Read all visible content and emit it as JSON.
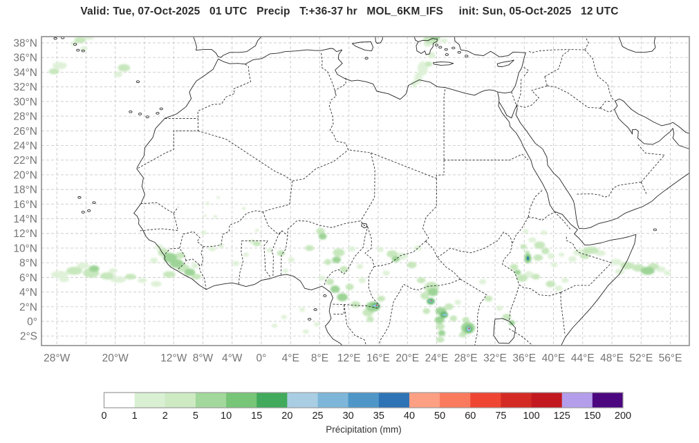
{
  "title": "Valid: Tue, 07-Oct-2025   01 UTC   Precip   T:+36-37 hr   MOL_6KM_IFS     init: Sun, 05-Oct-2025   12 UTC",
  "chart_data": {
    "type": "heatmap",
    "title": "Valid: Tue, 07-Oct-2025 01 UTC Precip T:+36-37 hr MOL_6KM_IFS init: Sun, 05-Oct-2025 12 UTC",
    "model": "MOL_6KM_IFS",
    "valid_time": "Tue, 07-Oct-2025 01 UTC",
    "init_time": "Sun, 05-Oct-2025 12 UTC",
    "lead_time": "T:+36-37 hr",
    "variable": "Precip",
    "projection": "plate-carree",
    "extent": {
      "lon_min": -30.1,
      "lon_max": 58.6,
      "lat_min": -3.3,
      "lat_max": 38.85
    },
    "grid": {
      "lon_start": -28,
      "lon_end": 56,
      "lon_step": 4,
      "lat_start": -2,
      "lat_end": 38,
      "lat_step": 2
    },
    "xticks": [
      {
        "v": -28,
        "label": "28°W"
      },
      {
        "v": -20,
        "label": "20°W"
      },
      {
        "v": -12,
        "label": "12°W"
      },
      {
        "v": -8,
        "label": "8°W"
      },
      {
        "v": -4,
        "label": "4°W"
      },
      {
        "v": 0,
        "label": "0°"
      },
      {
        "v": 4,
        "label": "4°E"
      },
      {
        "v": 8,
        "label": "8°E"
      },
      {
        "v": 12,
        "label": "12°E"
      },
      {
        "v": 16,
        "label": "16°E"
      },
      {
        "v": 20,
        "label": "20°E"
      },
      {
        "v": 24,
        "label": "24°E"
      },
      {
        "v": 28,
        "label": "28°E"
      },
      {
        "v": 32,
        "label": "32°E"
      },
      {
        "v": 36,
        "label": "36°E"
      },
      {
        "v": 40,
        "label": "40°E"
      },
      {
        "v": 44,
        "label": "44°E"
      },
      {
        "v": 48,
        "label": "48°E"
      },
      {
        "v": 52,
        "label": "52°E"
      },
      {
        "v": 56,
        "label": "56°E"
      }
    ],
    "yticks": [
      {
        "v": 38,
        "label": "38°N"
      },
      {
        "v": 36,
        "label": "36°N"
      },
      {
        "v": 34,
        "label": "34°N"
      },
      {
        "v": 32,
        "label": "32°N"
      },
      {
        "v": 30,
        "label": "30°N"
      },
      {
        "v": 28,
        "label": "28°N"
      },
      {
        "v": 26,
        "label": "26°N"
      },
      {
        "v": 24,
        "label": "24°N"
      },
      {
        "v": 22,
        "label": "22°N"
      },
      {
        "v": 20,
        "label": "20°N"
      },
      {
        "v": 18,
        "label": "18°N"
      },
      {
        "v": 16,
        "label": "16°N"
      },
      {
        "v": 14,
        "label": "14°N"
      },
      {
        "v": 12,
        "label": "12°N"
      },
      {
        "v": 10,
        "label": "10°N"
      },
      {
        "v": 8,
        "label": "8°N"
      },
      {
        "v": 6,
        "label": "6°N"
      },
      {
        "v": 4,
        "label": "4°N"
      },
      {
        "v": 2,
        "label": "2°N"
      },
      {
        "v": 0,
        "label": "0°"
      },
      {
        "v": -2,
        "label": "2°S"
      }
    ],
    "colorbar": {
      "caption": "Précipitation (mm)",
      "levels": [
        0,
        1,
        2,
        5,
        10,
        15,
        20,
        25,
        30,
        35,
        40,
        50,
        60,
        75,
        100,
        125,
        150,
        200
      ],
      "colors": [
        "#ffffff",
        "#d9f0d3",
        "#cdeac3",
        "#a2d89b",
        "#77c577",
        "#42aa5c",
        "#a9cee4",
        "#7db6d9",
        "#4e96c8",
        "#2d73b5",
        "#fc9f83",
        "#fa7a5e",
        "#ef4533",
        "#d32b24",
        "#c2181f",
        "#b49dea",
        "#4b0680"
      ]
    },
    "cell_colors": {
      "l1": "#ddf1d6",
      "l2": "#c3e5b8",
      "l3": "#96d18f",
      "l4": "#57b467",
      "l5": "#3fa85a",
      "lb": "#8fc2e2",
      "bl": "#2d73b5",
      "pk": "#fc9f83",
      "rd": "#e23227"
    },
    "cells": [
      [
        -24.8,
        38.4,
        0.8,
        0.45,
        "l2"
      ],
      [
        -25.6,
        37.9,
        0.5,
        0.35,
        "l1"
      ],
      [
        -24.3,
        37.2,
        0.5,
        0.35,
        "l1"
      ],
      [
        -18.8,
        34.6,
        0.85,
        0.5,
        "l2"
      ],
      [
        -19.6,
        33.7,
        0.6,
        0.4,
        "l1"
      ],
      [
        -27.6,
        34.9,
        1.0,
        0.5,
        "l1"
      ],
      [
        -28.4,
        34.1,
        0.7,
        0.4,
        "l2"
      ],
      [
        -23.5,
        38.7,
        0.6,
        0.3,
        "l1"
      ],
      [
        23.3,
        38.5,
        1.1,
        0.7,
        "l2"
      ],
      [
        23.8,
        38.8,
        0.7,
        0.4,
        "l3"
      ],
      [
        22.7,
        37.8,
        0.5,
        0.35,
        "l1"
      ],
      [
        23.3,
        36.3,
        0.55,
        0.45,
        "l1"
      ],
      [
        22.1,
        34.5,
        0.7,
        1.0,
        "l1"
      ],
      [
        21.5,
        33.2,
        0.55,
        0.8,
        "l1"
      ],
      [
        22.9,
        35.1,
        0.5,
        0.35,
        "l2"
      ],
      [
        25.0,
        38.3,
        0.5,
        0.3,
        "l1"
      ],
      [
        20.9,
        32.4,
        0.4,
        0.5,
        "l1"
      ],
      [
        -7.4,
        16.1,
        0.3,
        0.2,
        "l1"
      ],
      [
        -6.3,
        14.3,
        0.3,
        0.2,
        "l1"
      ],
      [
        -7.7,
        14.4,
        0.25,
        0.18,
        "l1"
      ],
      [
        -2.4,
        15.4,
        0.3,
        0.2,
        "l1"
      ],
      [
        -0.6,
        12.4,
        0.3,
        0.22,
        "l1"
      ],
      [
        -5.9,
        16.9,
        0.25,
        0.18,
        "l1"
      ],
      [
        -27.6,
        6.4,
        1.2,
        0.5,
        "l1"
      ],
      [
        -25.6,
        6.9,
        1.1,
        0.55,
        "l2"
      ],
      [
        -24.4,
        7.6,
        0.85,
        0.45,
        "l1"
      ],
      [
        -23.3,
        6.6,
        1.1,
        0.65,
        "l2"
      ],
      [
        -22.9,
        7.2,
        0.7,
        0.45,
        "l3"
      ],
      [
        -21.1,
        6.2,
        0.95,
        0.5,
        "l2"
      ],
      [
        -19.6,
        5.7,
        1.1,
        0.45,
        "l1"
      ],
      [
        -17.9,
        6.1,
        0.75,
        0.4,
        "l2"
      ],
      [
        -16.3,
        5.6,
        0.65,
        0.35,
        "l1"
      ],
      [
        -14.4,
        5.1,
        0.75,
        0.4,
        "l1"
      ],
      [
        -12.6,
        6.4,
        0.85,
        0.45,
        "l2"
      ],
      [
        -27.0,
        5.7,
        0.7,
        0.35,
        "l1"
      ],
      [
        -20.3,
        6.9,
        0.6,
        0.35,
        "l1"
      ],
      [
        -13.4,
        9.4,
        0.75,
        0.55,
        "l2"
      ],
      [
        -12.5,
        8.7,
        0.95,
        0.65,
        "l3"
      ],
      [
        -11.6,
        7.9,
        0.95,
        0.6,
        "l3"
      ],
      [
        -10.7,
        7.3,
        0.85,
        0.55,
        "l2"
      ],
      [
        -9.8,
        6.7,
        0.75,
        0.5,
        "l3"
      ],
      [
        -14.0,
        10.1,
        0.55,
        0.4,
        "l1"
      ],
      [
        -11.1,
        9.0,
        0.65,
        0.45,
        "l2"
      ],
      [
        -8.9,
        6.1,
        0.65,
        0.4,
        "l2"
      ],
      [
        -14.7,
        8.3,
        0.55,
        0.4,
        "l1"
      ],
      [
        -9.1,
        7.6,
        0.5,
        0.4,
        "l1"
      ],
      [
        -6.7,
        9.9,
        0.5,
        0.35,
        "l1"
      ],
      [
        -5.5,
        10.3,
        0.4,
        0.3,
        "l1"
      ],
      [
        -3.5,
        7.9,
        0.5,
        0.35,
        "l1"
      ],
      [
        -2.1,
        9.1,
        0.4,
        0.3,
        "l1"
      ],
      [
        -0.6,
        10.6,
        0.55,
        0.35,
        "l2"
      ],
      [
        -1.3,
        10.9,
        0.45,
        0.3,
        "l1"
      ],
      [
        1.1,
        9.7,
        0.4,
        0.3,
        "l1"
      ],
      [
        -7.9,
        12.1,
        0.4,
        0.3,
        "l1"
      ],
      [
        2.7,
        9.3,
        0.55,
        0.4,
        "l2"
      ],
      [
        4.1,
        8.4,
        0.45,
        0.35,
        "l1"
      ],
      [
        6.6,
        10.0,
        0.6,
        0.4,
        "l2"
      ],
      [
        3.3,
        6.9,
        0.4,
        0.3,
        "l1"
      ],
      [
        8.1,
        12.3,
        0.6,
        0.45,
        "l2"
      ],
      [
        8.4,
        11.6,
        0.55,
        0.45,
        "l3"
      ],
      [
        9.1,
        8.1,
        0.5,
        0.4,
        "l2"
      ],
      [
        10.6,
        9.4,
        0.8,
        0.55,
        "l2"
      ],
      [
        10.3,
        8.4,
        0.6,
        0.45,
        "l3"
      ],
      [
        11.3,
        7.1,
        0.55,
        0.45,
        "l2"
      ],
      [
        12.4,
        9.9,
        0.5,
        0.35,
        "l1"
      ],
      [
        9.4,
        5.4,
        0.55,
        0.45,
        "l2"
      ],
      [
        10.1,
        4.4,
        0.65,
        0.5,
        "l3"
      ],
      [
        11.1,
        3.3,
        0.75,
        0.55,
        "l3"
      ],
      [
        12.1,
        4.7,
        0.55,
        0.45,
        "l2"
      ],
      [
        8.3,
        5.9,
        0.45,
        0.35,
        "l1"
      ],
      [
        13.5,
        7.5,
        0.45,
        0.35,
        "l1"
      ],
      [
        12.9,
        2.3,
        0.65,
        0.45,
        "l2"
      ],
      [
        13.8,
        5.6,
        0.5,
        0.4,
        "l1"
      ],
      [
        15.3,
        2.0,
        1.0,
        0.7,
        "l3"
      ],
      [
        15.65,
        2.15,
        0.55,
        0.38,
        "l4"
      ],
      [
        15.65,
        2.15,
        0.42,
        0.15,
        "lb"
      ],
      [
        15.8,
        2.2,
        0.09,
        0.09,
        "rd"
      ],
      [
        14.6,
        1.2,
        0.75,
        0.5,
        "l2"
      ],
      [
        16.4,
        3.1,
        0.55,
        0.4,
        "l2"
      ],
      [
        14.9,
        0.3,
        0.5,
        0.4,
        "l2"
      ],
      [
        17.9,
        9.2,
        0.75,
        0.5,
        "l2"
      ],
      [
        19.1,
        8.9,
        0.95,
        0.5,
        "l1"
      ],
      [
        18.4,
        8.5,
        0.55,
        0.4,
        "l3"
      ],
      [
        20.6,
        7.7,
        0.65,
        0.45,
        "l2"
      ],
      [
        17.1,
        6.6,
        0.5,
        0.35,
        "l1"
      ],
      [
        21.4,
        10.0,
        0.55,
        0.35,
        "l1"
      ],
      [
        16.3,
        9.8,
        0.45,
        0.35,
        "l1"
      ],
      [
        23.3,
        4.6,
        1.0,
        0.8,
        "l2"
      ],
      [
        23.5,
        4.0,
        0.7,
        0.55,
        "l3"
      ],
      [
        23.2,
        2.75,
        0.55,
        0.45,
        "l4"
      ],
      [
        23.2,
        2.75,
        0.3,
        0.12,
        "lb"
      ],
      [
        23.3,
        2.8,
        0.08,
        0.08,
        "rd"
      ],
      [
        22.4,
        3.5,
        0.6,
        0.5,
        "l2"
      ],
      [
        24.6,
        1.4,
        0.75,
        0.55,
        "l3"
      ],
      [
        25.0,
        0.9,
        0.55,
        0.45,
        "l4"
      ],
      [
        25.1,
        0.9,
        0.33,
        0.13,
        "lb"
      ],
      [
        24.4,
        0.2,
        0.65,
        0.5,
        "l3"
      ],
      [
        24.5,
        -0.7,
        0.6,
        0.45,
        "l2"
      ],
      [
        24.7,
        -1.6,
        0.5,
        0.4,
        "l3"
      ],
      [
        24.5,
        -2.5,
        0.55,
        0.4,
        "l2"
      ],
      [
        25.7,
        2.0,
        0.6,
        0.45,
        "l2"
      ],
      [
        26.3,
        0.4,
        0.5,
        0.4,
        "l2"
      ],
      [
        22.6,
        1.4,
        0.5,
        0.4,
        "l2"
      ],
      [
        21.9,
        5.6,
        0.6,
        0.4,
        "l2"
      ],
      [
        26.9,
        2.6,
        0.45,
        0.35,
        "l1"
      ],
      [
        28.3,
        -0.9,
        0.95,
        0.8,
        "l3"
      ],
      [
        28.4,
        -1.05,
        0.5,
        0.5,
        "l4"
      ],
      [
        28.4,
        -1.05,
        0.28,
        0.33,
        "lb"
      ],
      [
        28.45,
        -0.95,
        0.1,
        0.1,
        "rd"
      ],
      [
        27.6,
        -1.8,
        0.5,
        0.4,
        "l2"
      ],
      [
        28.0,
        0.2,
        0.5,
        0.4,
        "l2"
      ],
      [
        31.1,
        3.1,
        0.55,
        0.4,
        "l2"
      ],
      [
        33.6,
        0.6,
        0.6,
        0.45,
        "l2"
      ],
      [
        34.3,
        -0.2,
        0.45,
        0.35,
        "l3"
      ],
      [
        30.3,
        5.4,
        0.5,
        0.35,
        "l1"
      ],
      [
        32.6,
        1.8,
        0.45,
        0.35,
        "l1"
      ],
      [
        36.5,
        8.6,
        0.5,
        0.7,
        "l3"
      ],
      [
        36.5,
        8.6,
        0.28,
        0.42,
        "l4"
      ],
      [
        36.5,
        8.6,
        0.13,
        0.26,
        "bl"
      ],
      [
        36.4,
        9.4,
        0.35,
        0.3,
        "l2"
      ],
      [
        35.7,
        5.9,
        0.75,
        0.5,
        "l2"
      ],
      [
        36.6,
        6.4,
        0.65,
        0.45,
        "l1"
      ],
      [
        37.6,
        6.1,
        0.55,
        0.4,
        "l2"
      ],
      [
        35.1,
        6.7,
        0.45,
        0.35,
        "l3"
      ],
      [
        34.6,
        7.4,
        0.55,
        0.45,
        "l2"
      ],
      [
        37.1,
        11.1,
        0.55,
        0.35,
        "l1"
      ],
      [
        38.1,
        10.4,
        0.75,
        0.5,
        "l2"
      ],
      [
        38.9,
        9.6,
        0.55,
        0.45,
        "l2"
      ],
      [
        39.7,
        8.9,
        0.5,
        0.4,
        "l1"
      ],
      [
        37.9,
        8.7,
        0.65,
        0.45,
        "l2"
      ],
      [
        36.2,
        12.3,
        0.4,
        0.3,
        "l1"
      ],
      [
        38.7,
        12.1,
        0.45,
        0.3,
        "l1"
      ],
      [
        40.1,
        7.7,
        0.45,
        0.35,
        "l1"
      ],
      [
        41.1,
        9.1,
        0.4,
        0.3,
        "l1"
      ],
      [
        35.9,
        10.2,
        0.45,
        0.35,
        "l2"
      ],
      [
        43.6,
        9.4,
        0.9,
        0.45,
        "l1"
      ],
      [
        45.1,
        9.7,
        1.1,
        0.5,
        "l2"
      ],
      [
        46.4,
        9.3,
        0.75,
        0.4,
        "l1"
      ],
      [
        42.6,
        8.5,
        0.55,
        0.4,
        "l1"
      ],
      [
        44.3,
        8.9,
        0.65,
        0.4,
        "l2"
      ],
      [
        48.6,
        8.1,
        0.75,
        0.45,
        "l1"
      ],
      [
        50.1,
        7.6,
        0.95,
        0.5,
        "l2"
      ],
      [
        51.6,
        7.3,
        0.85,
        0.5,
        "l2"
      ],
      [
        52.9,
        6.9,
        0.95,
        0.55,
        "l3"
      ],
      [
        53.7,
        7.5,
        0.75,
        0.45,
        "l2"
      ],
      [
        54.7,
        7.1,
        0.65,
        0.4,
        "l1"
      ],
      [
        49.1,
        6.8,
        0.65,
        0.4,
        "l1"
      ],
      [
        55.6,
        6.6,
        0.5,
        0.35,
        "l1"
      ],
      [
        39.6,
        5.1,
        0.65,
        0.45,
        "l2"
      ],
      [
        40.7,
        4.5,
        0.55,
        0.4,
        "l1"
      ],
      [
        41.6,
        5.6,
        0.5,
        0.35,
        "l1"
      ],
      [
        5.6,
        1.6,
        0.4,
        0.3,
        "l1"
      ],
      [
        3.1,
        0.6,
        0.4,
        0.3,
        "l1"
      ],
      [
        7.6,
        -0.4,
        0.4,
        0.3,
        "l1"
      ],
      [
        6.1,
        -1.4,
        0.45,
        0.3,
        "l1"
      ],
      [
        1.8,
        -0.6,
        0.4,
        0.28,
        "l1"
      ]
    ]
  }
}
